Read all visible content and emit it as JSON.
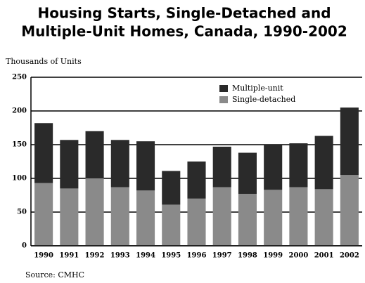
{
  "chart_data": {
    "type": "stacked_bar",
    "title": [
      "Housing Starts, Single-Detached and",
      "Multiple-Unit Homes, Canada, 1990-2002"
    ],
    "y_label": "Thousands of Units",
    "source": "Source: CMHC",
    "categories": [
      "1990",
      "1991",
      "1992",
      "1993",
      "1994",
      "1995",
      "1996",
      "1997",
      "1998",
      "1999",
      "2000",
      "2001",
      "2002"
    ],
    "series": [
      {
        "name": "Single-detached",
        "color": "#8a8a8a",
        "values": [
          93,
          85,
          100,
          87,
          82,
          61,
          70,
          87,
          77,
          83,
          87,
          84,
          105
        ]
      },
      {
        "name": "Multiple-unit",
        "color": "#2a2a2a",
        "values": [
          89,
          72,
          70,
          70,
          73,
          50,
          55,
          60,
          61,
          67,
          65,
          79,
          100
        ]
      }
    ],
    "ylim": [
      0,
      250
    ],
    "yticks": [
      0,
      50,
      100,
      150,
      200,
      250
    ],
    "grid": true
  }
}
